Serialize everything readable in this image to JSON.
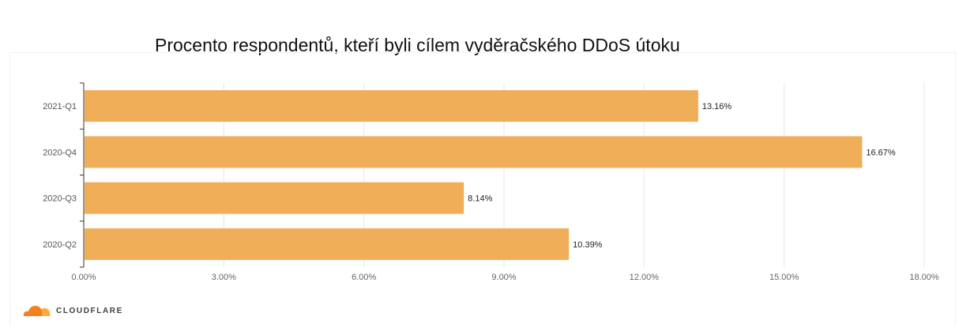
{
  "chart_data": {
    "type": "bar",
    "orientation": "horizontal",
    "title": "Procento respondentů, kteří byli cílem vyděračského DDoS útoku",
    "categories": [
      "2021-Q1",
      "2020-Q4",
      "2020-Q3",
      "2020-Q2"
    ],
    "values": [
      13.16,
      16.67,
      8.14,
      10.39
    ],
    "data_labels": [
      "13.16%",
      "16.67%",
      "8.14%",
      "10.39%"
    ],
    "xlim": [
      0,
      18
    ],
    "x_ticks": [
      0,
      3,
      6,
      9,
      12,
      15,
      18
    ],
    "x_tick_labels": [
      "0.00%",
      "3.00%",
      "6.00%",
      "9.00%",
      "12.00%",
      "15.00%",
      "18.00%"
    ],
    "xlabel": "",
    "ylabel": "",
    "grid": "vertical",
    "legend": "none",
    "bar_color": "#f0ae59"
  },
  "branding": {
    "logo_text": "CLOUDFLARE",
    "logo_colors": [
      "#f48120",
      "#faad3f"
    ]
  }
}
